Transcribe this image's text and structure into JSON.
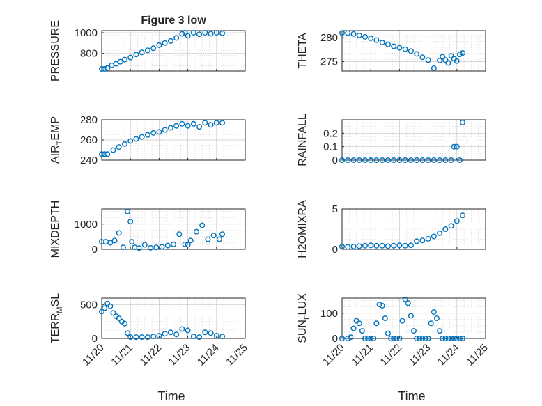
{
  "figure_title": "Figure 3 low",
  "x_axis_label": "Time",
  "x_tick_labels": [
    "11/20",
    "11/21",
    "11/22",
    "11/23",
    "11/24",
    "11/25"
  ],
  "colors": {
    "marker": "#0072BD",
    "axes": "#262626",
    "grid": "#c8c8c8",
    "background": "#ffffff"
  },
  "chart_data": [
    {
      "type": "scatter",
      "title": "Figure 3 low",
      "ylabel": "PRESSURE",
      "xlim": [
        0,
        5
      ],
      "ylim": [
        630,
        1020
      ],
      "yticks": [
        800,
        1000
      ],
      "grid": true,
      "x": [
        0,
        0.1,
        0.2,
        0.35,
        0.5,
        0.65,
        0.8,
        1,
        1.2,
        1.4,
        1.6,
        1.8,
        2,
        2.2,
        2.4,
        2.6,
        2.8,
        2.9,
        3,
        3.2,
        3.4,
        3.6,
        3.8,
        4,
        4.2
      ],
      "y": [
        650,
        650,
        660,
        685,
        700,
        720,
        740,
        760,
        790,
        810,
        830,
        850,
        880,
        900,
        920,
        950,
        990,
        1000,
        970,
        1000,
        985,
        1000,
        990,
        1000,
        995
      ]
    },
    {
      "type": "scatter",
      "ylabel": "THETA",
      "xlim": [
        0,
        5
      ],
      "ylim": [
        273,
        281.5
      ],
      "yticks": [
        275,
        280
      ],
      "grid": true,
      "x": [
        0,
        0.2,
        0.4,
        0.6,
        0.8,
        1,
        1.2,
        1.4,
        1.6,
        1.8,
        2,
        2.2,
        2.4,
        2.6,
        2.8,
        3,
        3.2,
        3.4,
        3.5,
        3.6,
        3.7,
        3.8,
        3.9,
        4,
        4.1,
        4.2
      ],
      "y": [
        281,
        281,
        280.8,
        280.5,
        280.2,
        279.9,
        279.5,
        279,
        278.6,
        278.2,
        277.9,
        277.6,
        277.2,
        276.6,
        275.9,
        275.3,
        273.6,
        275.2,
        276,
        275.3,
        274.7,
        276.2,
        275.6,
        275.1,
        276.5,
        276.8
      ]
    },
    {
      "type": "scatter",
      "ylabel": "AIR_TEMP",
      "xlim": [
        0,
        5
      ],
      "ylim": [
        240,
        280
      ],
      "yticks": [
        240,
        260,
        280
      ],
      "grid": true,
      "x": [
        0,
        0.1,
        0.2,
        0.4,
        0.6,
        0.8,
        1,
        1.2,
        1.4,
        1.6,
        1.8,
        2,
        2.2,
        2.4,
        2.6,
        2.8,
        3,
        3.2,
        3.4,
        3.6,
        3.8,
        4,
        4.2
      ],
      "y": [
        246,
        246,
        246,
        250,
        253,
        256,
        259,
        261,
        263,
        265,
        267,
        268,
        270,
        272,
        274,
        276,
        274,
        276,
        273,
        277,
        275,
        277,
        277
      ]
    },
    {
      "type": "scatter",
      "ylabel": "RAINFALL",
      "xlim": [
        0,
        5
      ],
      "ylim": [
        0,
        0.3
      ],
      "yticks": [
        0,
        0.1,
        0.2
      ],
      "grid": true,
      "x": [
        0,
        0.2,
        0.4,
        0.6,
        0.8,
        1,
        1.2,
        1.4,
        1.6,
        1.8,
        2,
        2.2,
        2.4,
        2.6,
        2.8,
        3,
        3.2,
        3.4,
        3.6,
        3.8,
        3.9,
        4,
        4.1,
        4.2
      ],
      "y": [
        0,
        0,
        0,
        0,
        0,
        0,
        0,
        0,
        0,
        0,
        0,
        0,
        0,
        0,
        0,
        0,
        0,
        0,
        0,
        0,
        0.1,
        0.1,
        0,
        0.28
      ]
    },
    {
      "type": "scatter",
      "ylabel": "MIXDEPTH",
      "xlim": [
        0,
        5
      ],
      "ylim": [
        0,
        1600
      ],
      "yticks": [
        0,
        1000
      ],
      "grid": true,
      "x": [
        0,
        0.15,
        0.3,
        0.45,
        0.6,
        0.75,
        0.9,
        1.0,
        1.05,
        1.15,
        1.3,
        1.5,
        1.7,
        1.9,
        2.1,
        2.3,
        2.5,
        2.7,
        2.9,
        3.0,
        3.1,
        3.3,
        3.5,
        3.7,
        3.9,
        4.1,
        4.2
      ],
      "y": [
        300,
        300,
        260,
        350,
        650,
        80,
        1500,
        1100,
        300,
        80,
        50,
        180,
        60,
        80,
        100,
        150,
        200,
        600,
        200,
        180,
        350,
        700,
        950,
        400,
        550,
        400,
        600
      ]
    },
    {
      "type": "scatter",
      "ylabel": "H2OMIXRA",
      "xlim": [
        0,
        5
      ],
      "ylim": [
        0,
        5
      ],
      "yticks": [
        0,
        5
      ],
      "grid": true,
      "x": [
        0,
        0.2,
        0.4,
        0.6,
        0.8,
        1,
        1.2,
        1.4,
        1.6,
        1.8,
        2,
        2.2,
        2.4,
        2.6,
        2.8,
        3,
        3.2,
        3.4,
        3.6,
        3.8,
        4,
        4.2
      ],
      "y": [
        0.35,
        0.3,
        0.35,
        0.4,
        0.45,
        0.5,
        0.45,
        0.45,
        0.4,
        0.45,
        0.5,
        0.45,
        0.5,
        1.0,
        1.1,
        1.3,
        1.6,
        2.0,
        2.5,
        2.9,
        3.5,
        4.2
      ]
    },
    {
      "type": "scatter",
      "ylabel": "TERR_MSL",
      "xlim": [
        0,
        5
      ],
      "ylim": [
        0,
        600
      ],
      "yticks": [
        0,
        500
      ],
      "grid": true,
      "x": [
        0,
        0.1,
        0.2,
        0.3,
        0.4,
        0.5,
        0.6,
        0.7,
        0.8,
        0.9,
        1.0,
        1.2,
        1.4,
        1.6,
        1.8,
        2,
        2.2,
        2.4,
        2.6,
        2.8,
        3.0,
        3.2,
        3.4,
        3.6,
        3.8,
        4,
        4.2
      ],
      "y": [
        400,
        450,
        520,
        480,
        380,
        330,
        300,
        250,
        220,
        80,
        20,
        20,
        20,
        20,
        30,
        40,
        70,
        90,
        60,
        140,
        120,
        30,
        20,
        90,
        80,
        40,
        30
      ]
    },
    {
      "type": "scatter",
      "ylabel": "SUN_FLUX",
      "xlim": [
        0,
        5
      ],
      "ylim": [
        0,
        160
      ],
      "yticks": [
        0,
        100
      ],
      "grid": true,
      "x": [
        0,
        0.2,
        0.3,
        0.4,
        0.5,
        0.6,
        0.7,
        0.8,
        0.9,
        1.0,
        1.1,
        1.2,
        1.3,
        1.4,
        1.5,
        1.6,
        1.7,
        1.8,
        1.9,
        2.0,
        2.1,
        2.2,
        2.3,
        2.4,
        2.5,
        2.6,
        2.7,
        2.8,
        2.9,
        3.0,
        3.1,
        3.2,
        3.3,
        3.4,
        3.5,
        3.6,
        3.7,
        3.8,
        3.9,
        4.0,
        4.1,
        4.2
      ],
      "y": [
        0,
        0,
        5,
        40,
        70,
        60,
        30,
        0,
        0,
        0,
        0,
        60,
        135,
        130,
        80,
        20,
        0,
        0,
        0,
        0,
        70,
        155,
        140,
        90,
        30,
        0,
        0,
        0,
        0,
        0,
        60,
        105,
        80,
        30,
        0,
        0,
        0,
        0,
        0,
        0,
        0,
        0
      ]
    }
  ]
}
